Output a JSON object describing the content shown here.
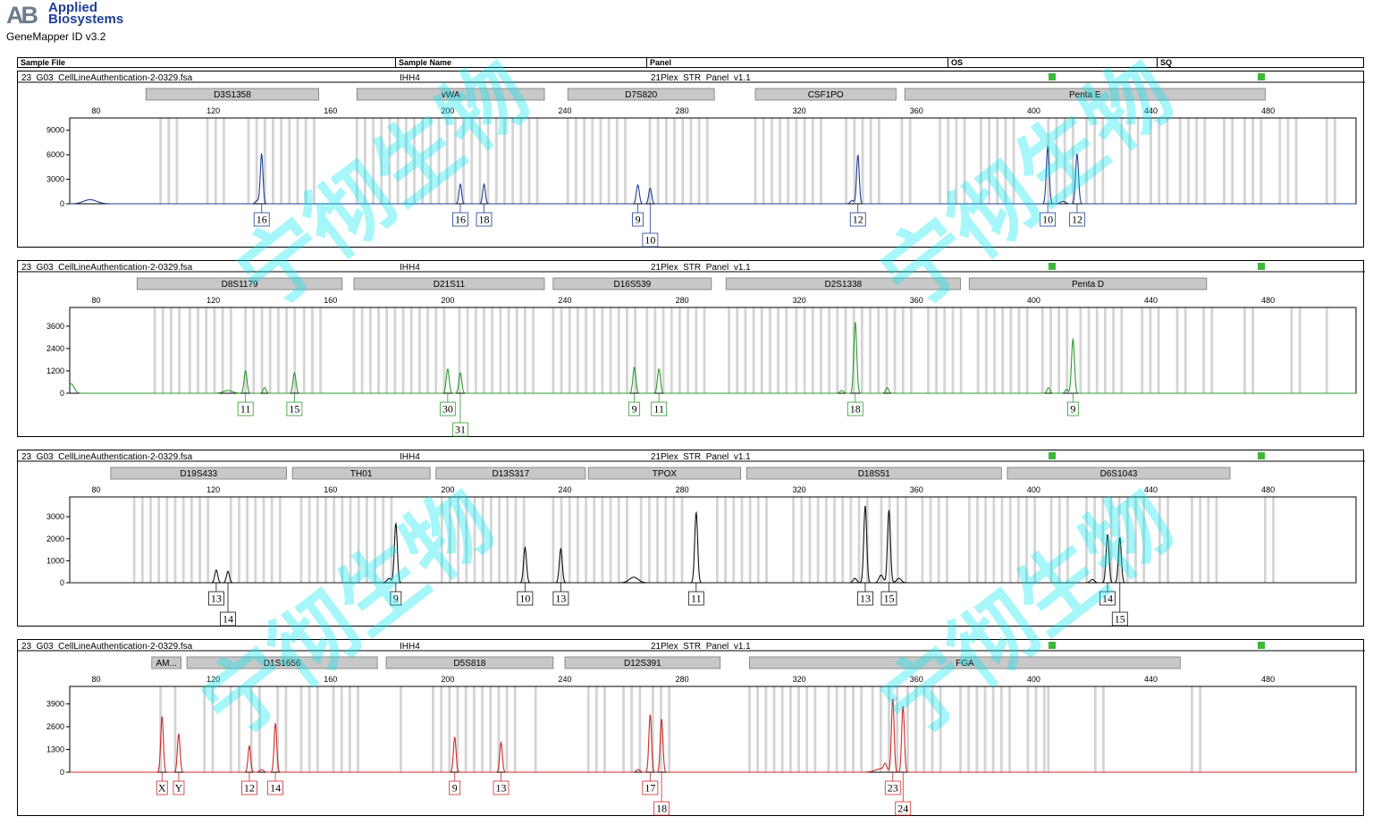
{
  "app": {
    "brand_mark": "AB",
    "brand_line1": "Applied",
    "brand_line2": "Biosystems",
    "title": "GeneMapper ID v3.2"
  },
  "table_header": {
    "sample_file": "Sample File",
    "sample_name": "Sample Name",
    "panel": "Panel",
    "os": "OS",
    "sq": "SQ"
  },
  "watermark_text": "宁彻生物",
  "colors": {
    "status_ok": "#3db83a",
    "bin": "#d4d4d4",
    "marker_fill": "#c8c8c8"
  },
  "chart_data": [
    {
      "type": "line",
      "dye_color": "#1f3f94",
      "sample_file": "23_G03_CellLineAuthentication-2-0329.fsa",
      "sample_name": "IHH4",
      "panel_name": "21Plex_STR_Panel_v1.1",
      "status": {
        "os": "ok",
        "sq": "ok"
      },
      "xlim": [
        71,
        510
      ],
      "x_ticks": [
        80,
        120,
        160,
        200,
        240,
        280,
        320,
        360,
        400,
        440,
        480
      ],
      "ylim": [
        0,
        10500
      ],
      "y_ticks": [
        0,
        3000,
        6000,
        9000
      ],
      "markers": [
        {
          "name": "D3S1358",
          "start": 97,
          "end": 156
        },
        {
          "name": "vWA",
          "start": 169,
          "end": 233
        },
        {
          "name": "D7S820",
          "start": 241,
          "end": 291
        },
        {
          "name": "CSF1PO",
          "start": 305,
          "end": 353
        },
        {
          "name": "Penta E",
          "start": 356,
          "end": 479
        }
      ],
      "bins": [
        [
          102,
          110
        ],
        [
          118,
          126
        ],
        [
          132,
          156
        ],
        [
          169,
          232
        ],
        [
          241,
          261
        ],
        [
          269,
          290
        ],
        [
          305,
          328
        ],
        [
          336,
          350
        ],
        [
          355,
          358
        ],
        [
          368,
          378
        ],
        [
          382,
          395
        ],
        [
          405,
          414
        ],
        [
          418,
          425
        ],
        [
          430,
          438
        ],
        [
          440,
          447
        ],
        [
          450,
          459
        ],
        [
          465,
          468
        ],
        [
          472,
          478
        ],
        [
          484,
          490
        ],
        [
          500,
          504
        ]
      ],
      "peaks": [
        {
          "x": 78,
          "h": 500,
          "w": 2.2
        },
        {
          "x": 135,
          "h": 400,
          "w": 0.6
        },
        {
          "x": 136.5,
          "h": 6100,
          "w": 0.45
        },
        {
          "x": 204.3,
          "h": 2400,
          "w": 0.45
        },
        {
          "x": 212.4,
          "h": 2400,
          "w": 0.45
        },
        {
          "x": 264.9,
          "h": 2300,
          "w": 0.5
        },
        {
          "x": 269.1,
          "h": 1900,
          "w": 0.5
        },
        {
          "x": 338,
          "h": 400,
          "w": 0.6
        },
        {
          "x": 340,
          "h": 6000,
          "w": 0.45
        },
        {
          "x": 404.8,
          "h": 7000,
          "w": 0.5
        },
        {
          "x": 414.8,
          "h": 6100,
          "w": 0.5
        },
        {
          "x": 410,
          "h": 300,
          "w": 0.8
        }
      ],
      "alleles": [
        {
          "label": "16",
          "x": 136.5,
          "row": 0
        },
        {
          "label": "16",
          "x": 204.3,
          "row": 0
        },
        {
          "label": "18",
          "x": 212.4,
          "row": 0
        },
        {
          "label": "9",
          "x": 264.9,
          "row": 0
        },
        {
          "label": "10",
          "x": 269.1,
          "row": 1
        },
        {
          "label": "12",
          "x": 340,
          "row": 0
        },
        {
          "label": "10",
          "x": 404.8,
          "row": 0
        },
        {
          "label": "12",
          "x": 414.8,
          "row": 0
        }
      ]
    },
    {
      "type": "line",
      "dye_color": "#2e9a2e",
      "sample_file": "23_G03_CellLineAuthentication-2-0329.fsa",
      "sample_name": "IHH4",
      "panel_name": "21Plex_STR_Panel_v1.1",
      "status": {
        "os": "ok",
        "sq": "ok"
      },
      "xlim": [
        71,
        510
      ],
      "x_ticks": [
        80,
        120,
        160,
        200,
        240,
        280,
        320,
        360,
        400,
        440,
        480
      ],
      "ylim": [
        0,
        4600
      ],
      "y_ticks": [
        0,
        1200,
        2400,
        3600
      ],
      "markers": [
        {
          "name": "D8S1179",
          "start": 94,
          "end": 164
        },
        {
          "name": "D21S11",
          "start": 168,
          "end": 233
        },
        {
          "name": "D16S539",
          "start": 236,
          "end": 290
        },
        {
          "name": "D2S1338",
          "start": 295,
          "end": 375
        },
        {
          "name": "Penta D",
          "start": 378,
          "end": 459
        }
      ],
      "bins": [
        [
          100,
          110
        ],
        [
          112,
          126
        ],
        [
          131,
          148
        ],
        [
          151,
          158
        ],
        [
          168,
          201
        ],
        [
          204,
          230
        ],
        [
          236,
          265
        ],
        [
          268,
          288
        ],
        [
          296,
          316
        ],
        [
          319,
          360
        ],
        [
          364,
          376
        ],
        [
          381,
          398
        ],
        [
          403,
          413
        ],
        [
          416,
          432
        ],
        [
          437,
          444
        ],
        [
          449,
          453
        ],
        [
          458,
          461
        ],
        [
          472,
          476
        ],
        [
          488,
          493
        ],
        [
          500,
          502
        ]
      ],
      "peaks": [
        {
          "x": 71.5,
          "h": 500,
          "w": 1.0
        },
        {
          "x": 125,
          "h": 150,
          "w": 1.5
        },
        {
          "x": 131,
          "h": 1200,
          "w": 0.5
        },
        {
          "x": 137.5,
          "h": 300,
          "w": 0.5
        },
        {
          "x": 147.7,
          "h": 1100,
          "w": 0.5
        },
        {
          "x": 200,
          "h": 1300,
          "w": 0.5
        },
        {
          "x": 204.3,
          "h": 1100,
          "w": 0.5
        },
        {
          "x": 263.7,
          "h": 1400,
          "w": 0.5
        },
        {
          "x": 272.1,
          "h": 1300,
          "w": 0.5
        },
        {
          "x": 334.5,
          "h": 150,
          "w": 0.6
        },
        {
          "x": 339.1,
          "h": 3800,
          "w": 0.5
        },
        {
          "x": 350,
          "h": 300,
          "w": 0.5
        },
        {
          "x": 405,
          "h": 300,
          "w": 0.5
        },
        {
          "x": 411.2,
          "h": 200,
          "w": 0.5
        },
        {
          "x": 413.4,
          "h": 2900,
          "w": 0.5
        }
      ],
      "alleles": [
        {
          "label": "11",
          "x": 131,
          "row": 0
        },
        {
          "label": "15",
          "x": 147.7,
          "row": 0
        },
        {
          "label": "30",
          "x": 200,
          "row": 0
        },
        {
          "label": "31",
          "x": 204.3,
          "row": 1
        },
        {
          "label": "9",
          "x": 263.7,
          "row": 0
        },
        {
          "label": "11",
          "x": 272.1,
          "row": 0
        },
        {
          "label": "18",
          "x": 339.1,
          "row": 0
        },
        {
          "label": "9",
          "x": 413.4,
          "row": 0
        }
      ]
    },
    {
      "type": "line",
      "dye_color": "#111111",
      "sample_file": "23_G03_CellLineAuthentication-2-0329.fsa",
      "sample_name": "IHH4",
      "panel_name": "21Plex_STR_Panel_v1.1",
      "status": {
        "os": "ok",
        "sq": "ok"
      },
      "xlim": [
        71,
        510
      ],
      "x_ticks": [
        80,
        120,
        160,
        200,
        240,
        280,
        320,
        360,
        400,
        440,
        480
      ],
      "ylim": [
        0,
        3900
      ],
      "y_ticks": [
        0,
        1000,
        2000,
        3000
      ],
      "markers": [
        {
          "name": "D19S433",
          "start": 85,
          "end": 145
        },
        {
          "name": "TH01",
          "start": 147,
          "end": 194
        },
        {
          "name": "D13S317",
          "start": 196,
          "end": 247
        },
        {
          "name": "TPOX",
          "start": 248,
          "end": 300
        },
        {
          "name": "D18S51",
          "start": 302,
          "end": 389
        },
        {
          "name": "D6S1043",
          "start": 391,
          "end": 467
        }
      ],
      "bins": [
        [
          93,
          120
        ],
        [
          126,
          143
        ],
        [
          150,
          183
        ],
        [
          198,
          228
        ],
        [
          236,
          262
        ],
        [
          266,
          282
        ],
        [
          292,
          311
        ],
        [
          318,
          345
        ],
        [
          348,
          357
        ],
        [
          362,
          372
        ],
        [
          378,
          402
        ],
        [
          406,
          413
        ],
        [
          418,
          439
        ],
        [
          443,
          447
        ],
        [
          454,
          463
        ],
        [
          479,
          484
        ]
      ],
      "peaks": [
        {
          "x": 121,
          "h": 580,
          "w": 0.5
        },
        {
          "x": 125,
          "h": 520,
          "w": 0.5
        },
        {
          "x": 180,
          "h": 200,
          "w": 0.7
        },
        {
          "x": 182.3,
          "h": 2700,
          "w": 0.5
        },
        {
          "x": 226.4,
          "h": 1600,
          "w": 0.5
        },
        {
          "x": 238.6,
          "h": 1550,
          "w": 0.5
        },
        {
          "x": 263.5,
          "h": 250,
          "w": 1.5
        },
        {
          "x": 284.8,
          "h": 3200,
          "w": 0.5
        },
        {
          "x": 339,
          "h": 200,
          "w": 0.6
        },
        {
          "x": 342.5,
          "h": 3500,
          "w": 0.5
        },
        {
          "x": 347.9,
          "h": 350,
          "w": 0.7
        },
        {
          "x": 350.6,
          "h": 3300,
          "w": 0.5
        },
        {
          "x": 354,
          "h": 200,
          "w": 0.8
        },
        {
          "x": 420,
          "h": 150,
          "w": 0.7
        },
        {
          "x": 425.2,
          "h": 2200,
          "w": 0.5
        },
        {
          "x": 429.4,
          "h": 2050,
          "w": 0.5
        }
      ],
      "alleles": [
        {
          "label": "13",
          "x": 121,
          "row": 0
        },
        {
          "label": "14",
          "x": 125,
          "row": 1
        },
        {
          "label": "9",
          "x": 182.3,
          "row": 0
        },
        {
          "label": "10",
          "x": 226.4,
          "row": 0
        },
        {
          "label": "13",
          "x": 238.6,
          "row": 0
        },
        {
          "label": "11",
          "x": 284.8,
          "row": 0
        },
        {
          "label": "13",
          "x": 342.5,
          "row": 0
        },
        {
          "label": "15",
          "x": 350.6,
          "row": 0
        },
        {
          "label": "14",
          "x": 425.2,
          "row": 0
        },
        {
          "label": "15",
          "x": 429.4,
          "row": 1
        }
      ]
    },
    {
      "type": "line",
      "dye_color": "#cc2a2a",
      "sample_file": "23_G03_CellLineAuthentication-2-0329.fsa",
      "sample_name": "IHH4",
      "panel_name": "21Plex_STR_Panel_v1.1",
      "status": {
        "os": "ok",
        "sq": "ok"
      },
      "xlim": [
        71,
        510
      ],
      "x_ticks": [
        80,
        120,
        160,
        200,
        240,
        280,
        320,
        360,
        400,
        440,
        480
      ],
      "ylim": [
        0,
        4900
      ],
      "y_ticks": [
        0,
        1300,
        2600,
        3900
      ],
      "markers": [
        {
          "name": "AM...",
          "start": 99,
          "end": 109
        },
        {
          "name": "D1S1656",
          "start": 111,
          "end": 176
        },
        {
          "name": "D5S818",
          "start": 179,
          "end": 236
        },
        {
          "name": "D12S391",
          "start": 240,
          "end": 293
        },
        {
          "name": "FGA",
          "start": 303,
          "end": 450
        }
      ],
      "bins": [
        [
          102,
          104
        ],
        [
          107,
          109
        ],
        [
          117,
          121
        ],
        [
          126,
          130
        ],
        [
          133,
          138
        ],
        [
          142,
          146
        ],
        [
          150,
          158
        ],
        [
          161,
          170
        ],
        [
          184,
          186
        ],
        [
          195,
          225
        ],
        [
          230,
          232
        ],
        [
          248,
          256
        ],
        [
          260,
          267
        ],
        [
          270,
          278
        ],
        [
          303,
          327
        ],
        [
          330,
          343
        ],
        [
          345,
          355
        ],
        [
          357,
          369
        ],
        [
          375,
          392
        ],
        [
          398,
          404
        ],
        [
          405,
          407
        ],
        [
          421,
          425
        ],
        [
          454,
          458
        ]
      ],
      "peaks": [
        {
          "x": 102.5,
          "h": 3200,
          "w": 0.45
        },
        {
          "x": 108.2,
          "h": 2200,
          "w": 0.45
        },
        {
          "x": 132.3,
          "h": 1500,
          "w": 0.45
        },
        {
          "x": 136.5,
          "h": 150,
          "w": 0.6
        },
        {
          "x": 141.2,
          "h": 2800,
          "w": 0.45
        },
        {
          "x": 202.4,
          "h": 2000,
          "w": 0.45
        },
        {
          "x": 218.2,
          "h": 1700,
          "w": 0.45
        },
        {
          "x": 265,
          "h": 150,
          "w": 0.6
        },
        {
          "x": 269.1,
          "h": 3300,
          "w": 0.45
        },
        {
          "x": 273,
          "h": 3050,
          "w": 0.45
        },
        {
          "x": 349.3,
          "h": 350,
          "w": 0.5
        },
        {
          "x": 351.9,
          "h": 4200,
          "w": 0.45
        },
        {
          "x": 355.4,
          "h": 3800,
          "w": 0.45
        },
        {
          "x": 348,
          "h": 200,
          "w": 2.0
        }
      ],
      "alleles": [
        {
          "label": "X",
          "x": 102.5,
          "row": 0
        },
        {
          "label": "Y",
          "x": 108.2,
          "row": 0
        },
        {
          "label": "12",
          "x": 132.3,
          "row": 0
        },
        {
          "label": "14",
          "x": 141.2,
          "row": 0
        },
        {
          "label": "9",
          "x": 202.4,
          "row": 0
        },
        {
          "label": "13",
          "x": 218.2,
          "row": 0
        },
        {
          "label": "17",
          "x": 269.1,
          "row": 0
        },
        {
          "label": "18",
          "x": 273,
          "row": 1
        },
        {
          "label": "23",
          "x": 351.9,
          "row": 0
        },
        {
          "label": "24",
          "x": 355.4,
          "row": 1
        }
      ]
    }
  ]
}
